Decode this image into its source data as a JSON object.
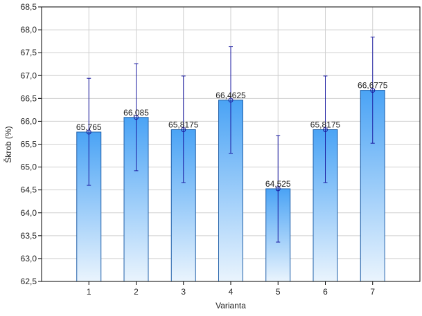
{
  "chart_data": {
    "type": "bar",
    "xlabel": "Varianta",
    "ylabel": "Škrob (%)",
    "categories": [
      "1",
      "2",
      "3",
      "4",
      "5",
      "6",
      "7"
    ],
    "values": [
      65.765,
      66.085,
      65.8175,
      66.4625,
      64.525,
      65.8175,
      66.6775
    ],
    "value_labels": [
      "65,765",
      "66,085",
      "65,8175",
      "66,4625",
      "64,525",
      "65,8175",
      "66,6775"
    ],
    "error_low": [
      64.6,
      64.92,
      64.66,
      65.3,
      63.36,
      64.66,
      65.52
    ],
    "error_high": [
      66.94,
      67.26,
      66.99,
      67.63,
      65.69,
      66.99,
      67.84
    ],
    "ylim": [
      62.5,
      68.5
    ],
    "y_ticks": [
      62.5,
      63.0,
      63.5,
      64.0,
      64.5,
      65.0,
      65.5,
      66.0,
      66.5,
      67.0,
      67.5,
      68.0,
      68.5
    ],
    "y_tick_labels": [
      "62,5",
      "63,0",
      "63,5",
      "64,0",
      "64,5",
      "65,0",
      "65,5",
      "66,0",
      "66,5",
      "67,0",
      "67,5",
      "68,0",
      "68,5"
    ],
    "grid": true,
    "colors": {
      "bar_top": "#4aa3f5",
      "bar_bottom": "#eaf4fd",
      "bar_edge": "#1f5fa8",
      "error_bar": "#1a1aa0",
      "grid": "#cfcfcf"
    }
  }
}
